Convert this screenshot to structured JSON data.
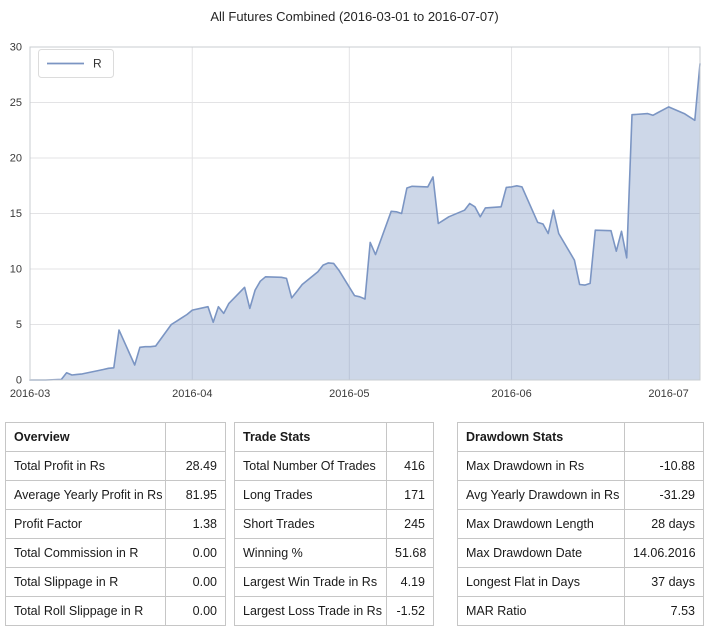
{
  "title": "All Futures Combined (2016-03-01 to 2016-07-07)",
  "chart_data": {
    "type": "area",
    "title": "All Futures Combined (2016-03-01 to 2016-07-07)",
    "xlabel": "",
    "ylabel": "",
    "ylim": [
      0,
      30
    ],
    "y_ticks": [
      0,
      5,
      10,
      15,
      20,
      25,
      30
    ],
    "x_ticks": [
      {
        "label": "2016-03",
        "date": "2016-03-01"
      },
      {
        "label": "2016-04",
        "date": "2016-04-01"
      },
      {
        "label": "2016-05",
        "date": "2016-05-01"
      },
      {
        "label": "2016-06",
        "date": "2016-06-01"
      },
      {
        "label": "2016-07",
        "date": "2016-07-01"
      }
    ],
    "x_start": "2016-03-01",
    "x_end": "2016-07-07",
    "x_span_days": 128,
    "grid": true,
    "legend_position": "upper left",
    "line_color": "#7b95c3",
    "fill_color": "rgba(123,149,195,0.38)",
    "grid_color": "#e3e3e5",
    "spine_color": "#c8ccd0",
    "tick_color": "#3a3a3a",
    "series": [
      {
        "name": "R",
        "dates": [
          "2016-03-01",
          "2016-03-02",
          "2016-03-03",
          "2016-03-04",
          "2016-03-07",
          "2016-03-08",
          "2016-03-09",
          "2016-03-10",
          "2016-03-11",
          "2016-03-14",
          "2016-03-15",
          "2016-03-16",
          "2016-03-17",
          "2016-03-18",
          "2016-03-21",
          "2016-03-22",
          "2016-03-23",
          "2016-03-24",
          "2016-03-25",
          "2016-03-28",
          "2016-03-29",
          "2016-03-30",
          "2016-03-31",
          "2016-04-01",
          "2016-04-04",
          "2016-04-05",
          "2016-04-06",
          "2016-04-07",
          "2016-04-08",
          "2016-04-11",
          "2016-04-12",
          "2016-04-13",
          "2016-04-14",
          "2016-04-15",
          "2016-04-18",
          "2016-04-19",
          "2016-04-20",
          "2016-04-21",
          "2016-04-22",
          "2016-04-25",
          "2016-04-26",
          "2016-04-27",
          "2016-04-28",
          "2016-04-29",
          "2016-05-02",
          "2016-05-03",
          "2016-05-04",
          "2016-05-05",
          "2016-05-06",
          "2016-05-09",
          "2016-05-10",
          "2016-05-11",
          "2016-05-12",
          "2016-05-13",
          "2016-05-16",
          "2016-05-17",
          "2016-05-18",
          "2016-05-19",
          "2016-05-20",
          "2016-05-23",
          "2016-05-24",
          "2016-05-25",
          "2016-05-26",
          "2016-05-27",
          "2016-05-30",
          "2016-05-31",
          "2016-06-01",
          "2016-06-02",
          "2016-06-03",
          "2016-06-06",
          "2016-06-07",
          "2016-06-08",
          "2016-06-09",
          "2016-06-10",
          "2016-06-13",
          "2016-06-14",
          "2016-06-15",
          "2016-06-16",
          "2016-06-17",
          "2016-06-20",
          "2016-06-21",
          "2016-06-22",
          "2016-06-23",
          "2016-06-24",
          "2016-06-27",
          "2016-06-28",
          "2016-06-29",
          "2016-06-30",
          "2016-07-01",
          "2016-07-04",
          "2016-07-05",
          "2016-07-06",
          "2016-07-07"
        ],
        "values": [
          0,
          0,
          0,
          0,
          0.05,
          0.65,
          0.45,
          0.5,
          0.55,
          0.85,
          0.95,
          1.05,
          1.1,
          4.5,
          1.35,
          2.95,
          3.0,
          3.0,
          3.05,
          5.0,
          5.3,
          5.6,
          5.9,
          6.3,
          6.6,
          5.2,
          6.6,
          6.0,
          6.9,
          8.35,
          6.45,
          8.1,
          8.9,
          9.3,
          9.25,
          9.15,
          7.4,
          8.0,
          8.6,
          9.75,
          10.35,
          10.55,
          10.5,
          9.9,
          7.6,
          7.5,
          7.3,
          12.4,
          11.3,
          15.2,
          15.15,
          15.0,
          17.3,
          17.45,
          17.4,
          18.3,
          14.1,
          14.4,
          14.7,
          15.3,
          15.9,
          15.6,
          14.7,
          15.5,
          15.6,
          17.35,
          17.4,
          17.5,
          17.4,
          14.2,
          14.05,
          13.2,
          15.3,
          13.2,
          10.8,
          8.6,
          8.55,
          8.7,
          13.5,
          13.45,
          11.6,
          13.4,
          11.0,
          23.9,
          24.0,
          23.85,
          24.1,
          24.35,
          24.6,
          24.0,
          23.7,
          23.4,
          28.49
        ]
      }
    ]
  },
  "tables": [
    {
      "title": "Overview",
      "rows": [
        [
          "Total Profit in Rs",
          "28.49"
        ],
        [
          "Average Yearly Profit in Rs",
          "81.95"
        ],
        [
          "Profit Factor",
          "1.38"
        ],
        [
          "Total Commission in R",
          "0.00"
        ],
        [
          "Total Slippage in R",
          "0.00"
        ],
        [
          "Total Roll Slippage in R",
          "0.00"
        ]
      ]
    },
    {
      "title": "Trade Stats",
      "rows": [
        [
          "Total Number Of Trades",
          "416"
        ],
        [
          "Long Trades",
          "171"
        ],
        [
          "Short Trades",
          "245"
        ],
        [
          "Winning %",
          "51.68"
        ],
        [
          "Largest Win Trade in Rs",
          "4.19"
        ],
        [
          "Largest Loss Trade in Rs",
          "-1.52"
        ]
      ]
    },
    {
      "title": "Drawdown Stats",
      "rows": [
        [
          "Max Drawdown in Rs",
          "-10.88"
        ],
        [
          "Avg Yearly Drawdown in Rs",
          "-31.29"
        ],
        [
          "Max Drawdown Length",
          "28 days"
        ],
        [
          "Max Drawdown Date",
          "14.06.2016"
        ],
        [
          "Longest Flat in Days",
          "37 days"
        ],
        [
          "MAR Ratio",
          "7.53"
        ]
      ]
    }
  ]
}
